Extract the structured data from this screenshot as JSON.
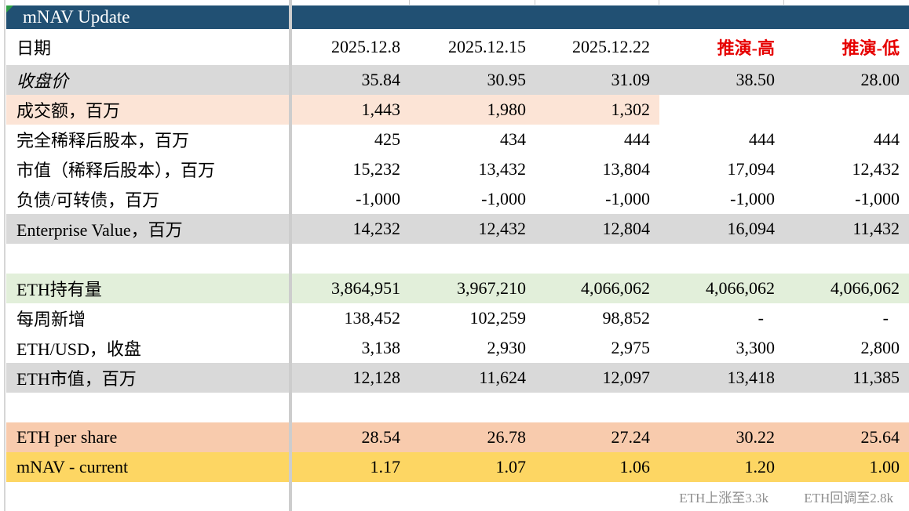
{
  "sheet": {
    "title": "mNAV Update",
    "date_row_label": "日期",
    "columns": [
      "2025.12.8",
      "2025.12.15",
      "2025.12.22",
      "推演-高",
      "推演-低"
    ],
    "rows": [
      {
        "label": "收盘价",
        "values": [
          "35.84",
          "30.95",
          "31.09",
          "38.50",
          "28.00"
        ],
        "bg": "gray",
        "italic": true
      },
      {
        "label": "成交额，百万",
        "values": [
          "1,443",
          "1,980",
          "1,302",
          "",
          ""
        ],
        "bg": "peach",
        "bg_span": 3
      },
      {
        "label": "完全稀释后股本，百万",
        "values": [
          "425",
          "434",
          "444",
          "444",
          "444"
        ]
      },
      {
        "label": "市值（稀释后股本），百万",
        "values": [
          "15,232",
          "13,432",
          "13,804",
          "17,094",
          "12,432"
        ]
      },
      {
        "label": "负债/可转债，百万",
        "values": [
          "-1,000",
          "-1,000",
          "-1,000",
          "-1,000",
          "-1,000"
        ]
      },
      {
        "label": "Enterprise Value，百万",
        "values": [
          "14,232",
          "12,432",
          "12,804",
          "16,094",
          "11,432"
        ],
        "bg": "gray"
      },
      {
        "label": "",
        "values": [
          "",
          "",
          "",
          "",
          ""
        ],
        "spacer": true
      },
      {
        "label": "ETH持有量",
        "values": [
          "3,864,951",
          "3,967,210",
          "4,066,062",
          "4,066,062",
          "4,066,062"
        ],
        "bg": "green"
      },
      {
        "label": "每周新增",
        "values": [
          "138,452",
          "102,259",
          "98,852",
          "-",
          "-"
        ]
      },
      {
        "label": "ETH/USD，收盘",
        "values": [
          "3,138",
          "2,930",
          "2,975",
          "3,300",
          "2,800"
        ]
      },
      {
        "label": "ETH市值，百万",
        "values": [
          "12,128",
          "11,624",
          "12,097",
          "13,418",
          "11,385"
        ],
        "bg": "gray"
      },
      {
        "label": "",
        "values": [
          "",
          "",
          "",
          "",
          ""
        ],
        "spacer": true
      },
      {
        "label": "ETH per share",
        "values": [
          "28.54",
          "26.78",
          "27.24",
          "30.22",
          "25.64"
        ],
        "bg": "salmon"
      },
      {
        "label": "mNAV - current",
        "values": [
          "1.17",
          "1.07",
          "1.06",
          "1.20",
          "1.00"
        ],
        "bg": "yellow"
      }
    ],
    "footer_notes": {
      "high": "ETH上涨至3.3k",
      "low": "ETH回调至2.8k"
    },
    "colors": {
      "header_bg": "#215073",
      "row_gray": "#D9D9D9",
      "row_peach": "#FCE4D6",
      "row_green": "#E2EFDA",
      "row_salmon": "#F8CBAD",
      "row_yellow": "#FDD663",
      "scenario_red": "#E60000",
      "note_gray": "#8F8F8F",
      "flag_green": "#2E9E44",
      "grid": "#CDCDCD"
    }
  }
}
